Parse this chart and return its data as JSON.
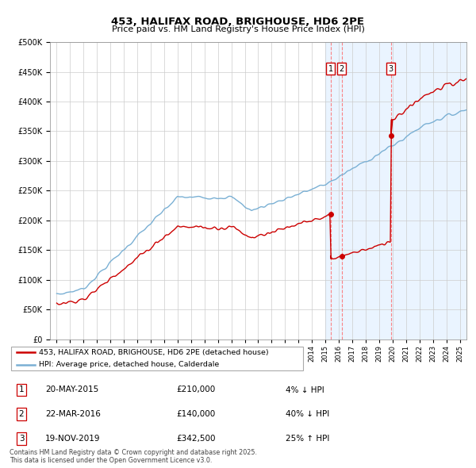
{
  "title": "453, HALIFAX ROAD, BRIGHOUSE, HD6 2PE",
  "subtitle": "Price paid vs. HM Land Registry's House Price Index (HPI)",
  "legend_line1": "453, HALIFAX ROAD, BRIGHOUSE, HD6 2PE (detached house)",
  "legend_line2": "HPI: Average price, detached house, Calderdale",
  "transactions": [
    {
      "num": 1,
      "date": "20-MAY-2015",
      "price": "£210,000",
      "hpi_diff": "4% ↓ HPI",
      "year": 2015.38,
      "price_val": 210000
    },
    {
      "num": 2,
      "date": "22-MAR-2016",
      "price": "£140,000",
      "hpi_diff": "40% ↓ HPI",
      "year": 2016.22,
      "price_val": 140000
    },
    {
      "num": 3,
      "date": "19-NOV-2019",
      "price": "£342,500",
      "hpi_diff": "25% ↑ HPI",
      "year": 2019.88,
      "price_val": 342500
    }
  ],
  "footer": "Contains HM Land Registry data © Crown copyright and database right 2025.\nThis data is licensed under the Open Government Licence v3.0.",
  "hpi_color": "#7ab0d4",
  "price_color": "#cc0000",
  "shade_color": "#ddeeff",
  "bg_color": "#ffffff",
  "grid_color": "#cccccc",
  "ylim": [
    0,
    500000
  ],
  "yticks": [
    0,
    50000,
    100000,
    150000,
    200000,
    250000,
    300000,
    350000,
    400000,
    450000,
    500000
  ],
  "xmin": 1995,
  "xmax": 2025.5,
  "shade_start": 2015.0
}
